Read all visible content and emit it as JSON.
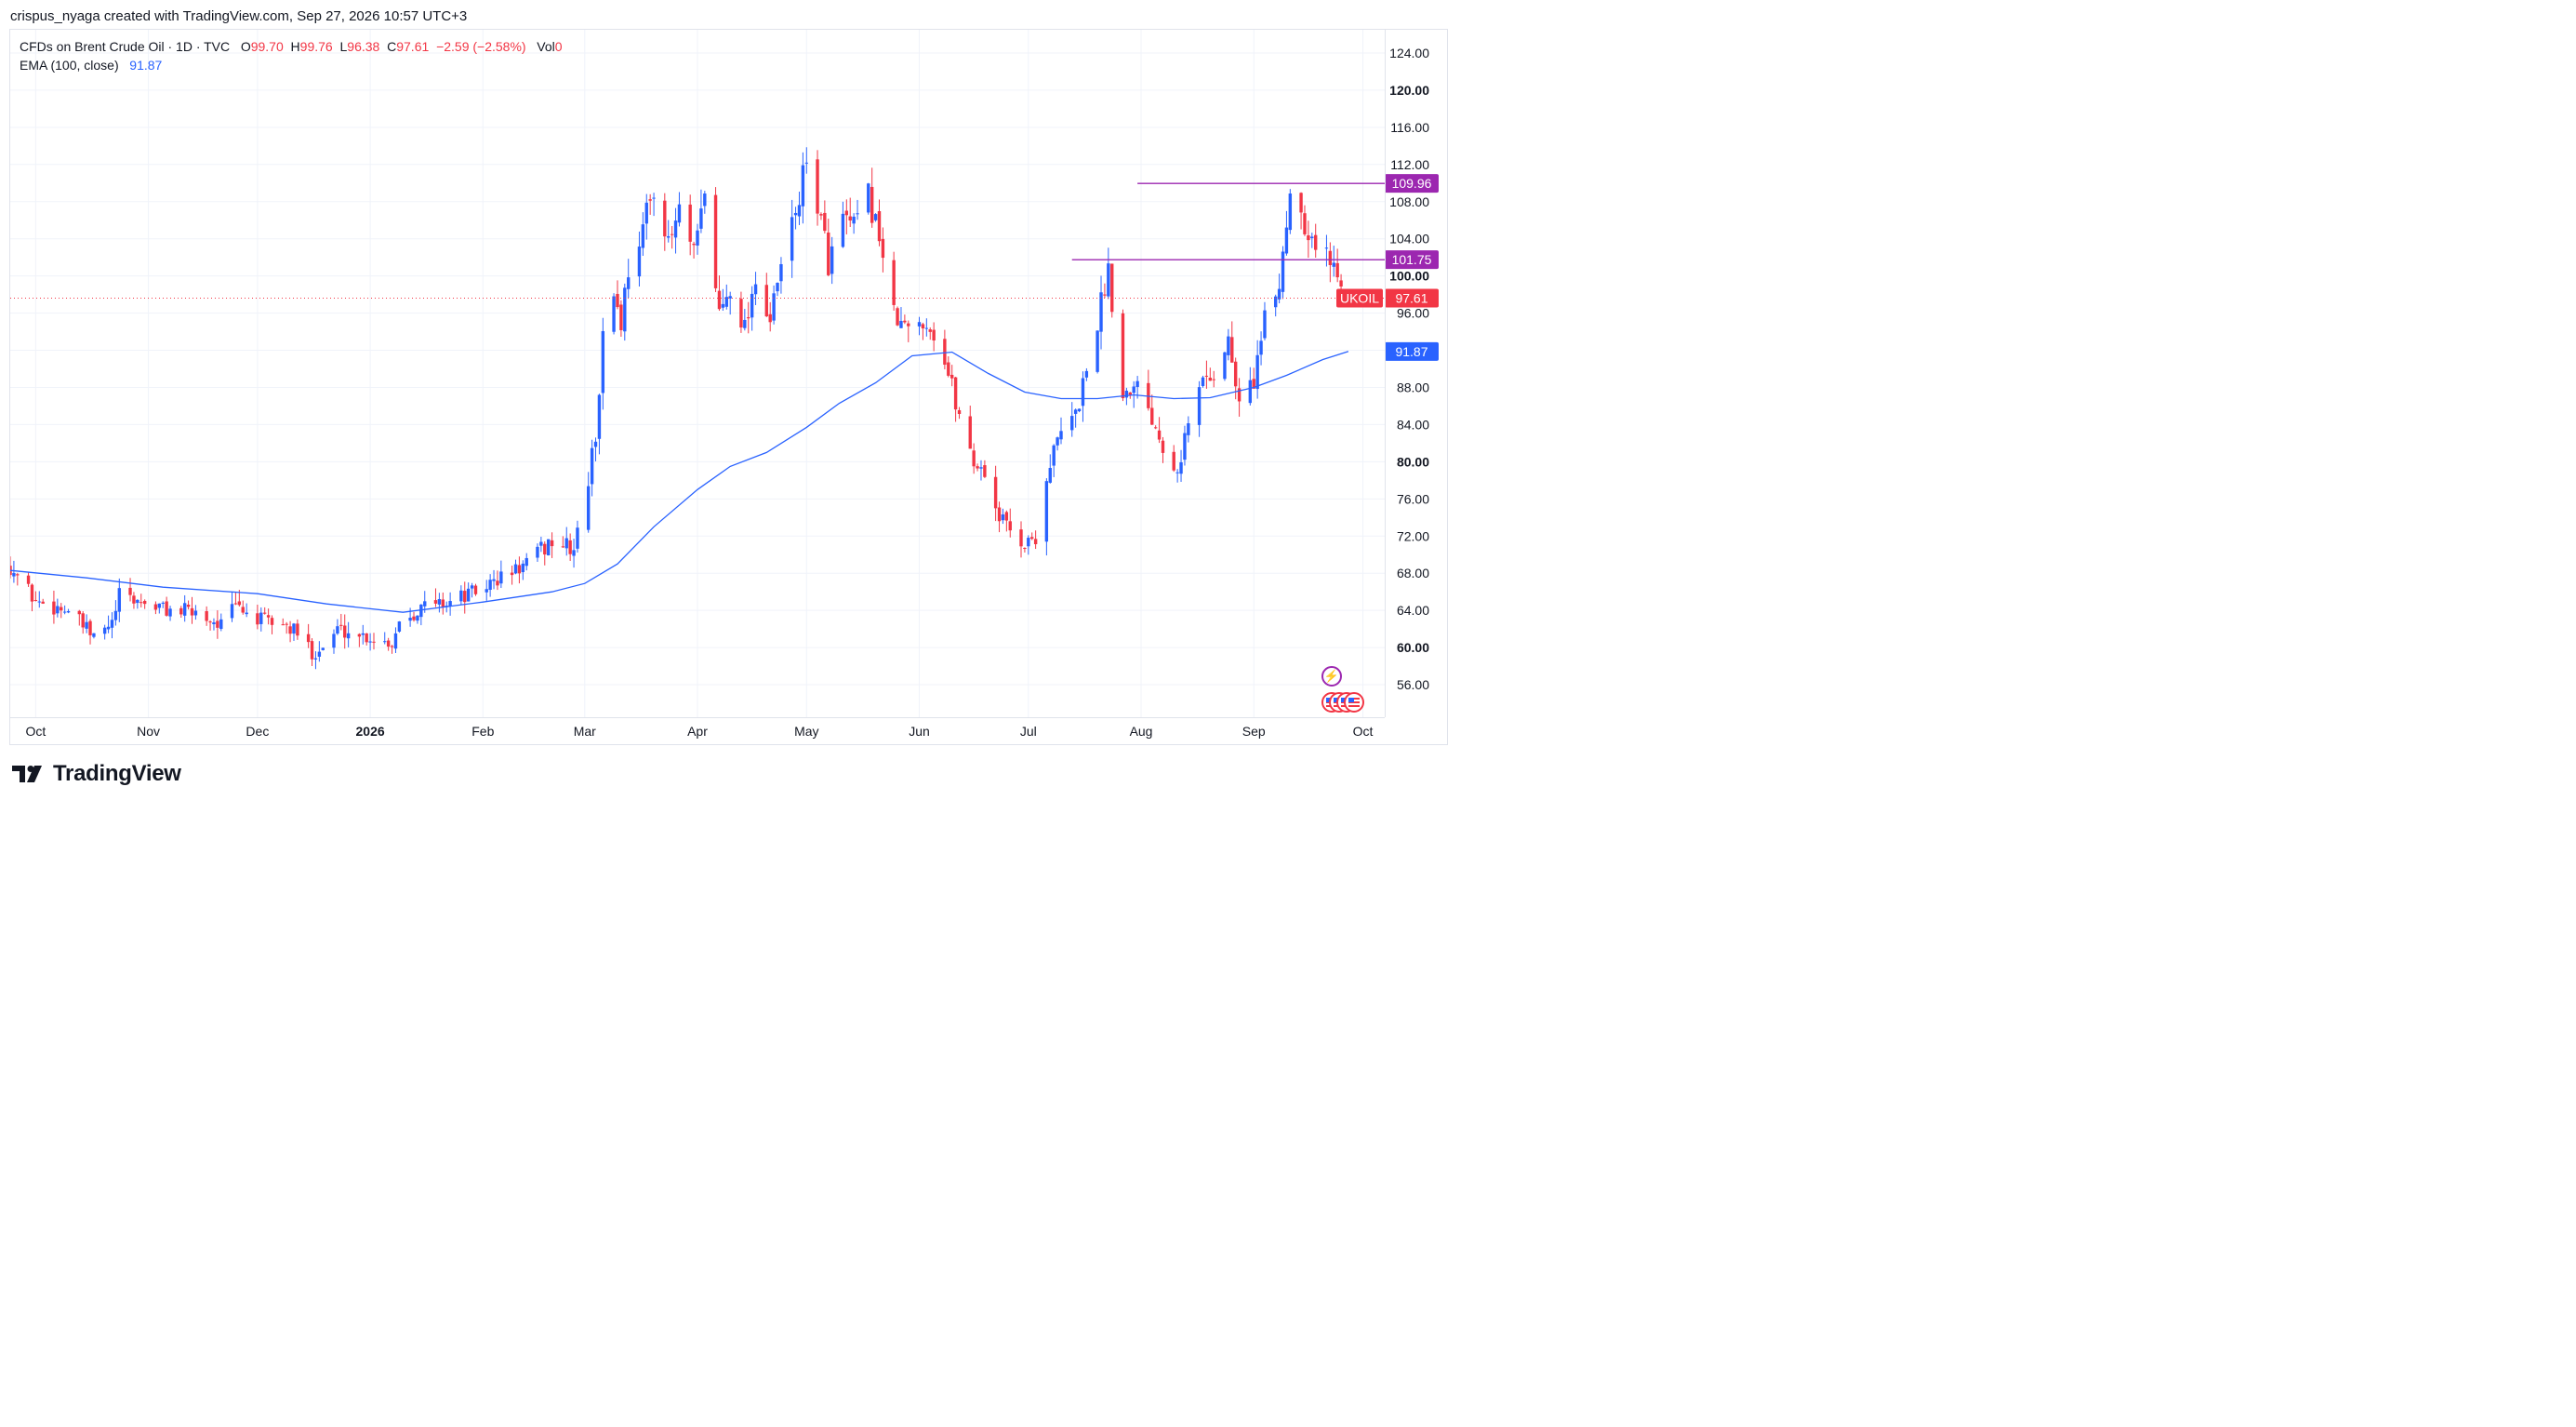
{
  "header": {
    "credit": "crispus_nyaga created with TradingView.com, Sep 27, 2026 10:57 UTC+3"
  },
  "legend": {
    "symbol": "CFDs on Brent Crude Oil · 1D · TVC",
    "o_label": "O",
    "o_value": "99.70",
    "h_label": "H",
    "h_value": "99.76",
    "l_label": "L",
    "l_value": "96.38",
    "c_label": "C",
    "c_value": "97.61",
    "change": "−2.59 (−2.58%)",
    "vol_label": "Vol",
    "vol_value": "0",
    "ema_label": "EMA (100, close)",
    "ema_value": "91.87"
  },
  "brand": {
    "name": "TradingView"
  },
  "colors": {
    "up": "#2962ff",
    "down": "#f23645",
    "ema": "#2962ff",
    "level": "#9c27b0",
    "grid": "#f0f3fa",
    "text": "#131722"
  },
  "icons": [
    "lightning-icon",
    "us-flag-icon",
    "tradingview-logo-icon"
  ],
  "chart_data": {
    "type": "candlestick",
    "symbol": "UKOIL",
    "ylim": [
      52.5,
      126.5
    ],
    "yticks": [
      "124.00",
      "120.00",
      "116.00",
      "112.00",
      "108.00",
      "104.00",
      "100.00",
      "96.00",
      "92.00",
      "88.00",
      "84.00",
      "80.00",
      "76.00",
      "72.00",
      "68.00",
      "64.00",
      "60.00",
      "56.00"
    ],
    "ytick_bold": [
      "120.00",
      "100.00",
      "80.00",
      "60.00"
    ],
    "xrange": [
      "2025-09-24",
      "2026-10-07"
    ],
    "xticks": [
      {
        "label": "Oct",
        "date": "2025-10-01",
        "bold": false
      },
      {
        "label": "Nov",
        "date": "2025-11-01",
        "bold": false
      },
      {
        "label": "Dec",
        "date": "2025-12-01",
        "bold": false
      },
      {
        "label": "2026",
        "date": "2026-01-01",
        "bold": true
      },
      {
        "label": "Feb",
        "date": "2026-02-01",
        "bold": false
      },
      {
        "label": "Mar",
        "date": "2026-03-01",
        "bold": false
      },
      {
        "label": "Apr",
        "date": "2026-04-01",
        "bold": false
      },
      {
        "label": "May",
        "date": "2026-05-01",
        "bold": false
      },
      {
        "label": "Jun",
        "date": "2026-06-01",
        "bold": false
      },
      {
        "label": "Jul",
        "date": "2026-07-01",
        "bold": false
      },
      {
        "label": "Aug",
        "date": "2026-08-01",
        "bold": false
      },
      {
        "label": "Sep",
        "date": "2026-09-01",
        "bold": false
      },
      {
        "label": "Oct",
        "date": "2026-10-01",
        "bold": false
      }
    ],
    "close_path": [
      [
        "2025-09-24",
        68.8
      ],
      [
        "2025-10-01",
        65.0
      ],
      [
        "2025-10-10",
        64.0
      ],
      [
        "2025-10-17",
        61.0
      ],
      [
        "2025-10-22",
        62.5
      ],
      [
        "2025-10-24",
        65.5
      ],
      [
        "2025-10-31",
        64.8
      ],
      [
        "2025-11-07",
        64.0
      ],
      [
        "2025-11-14",
        63.8
      ],
      [
        "2025-11-21",
        62.5
      ],
      [
        "2025-11-25",
        64.5
      ],
      [
        "2025-12-01",
        63.0
      ],
      [
        "2025-12-08",
        62.5
      ],
      [
        "2025-12-12",
        61.5
      ],
      [
        "2025-12-16",
        59.5
      ],
      [
        "2025-12-19",
        60.0
      ],
      [
        "2025-12-23",
        62.0
      ],
      [
        "2026-01-02",
        61.0
      ],
      [
        "2026-01-07",
        60.5
      ],
      [
        "2026-01-09",
        63.0
      ],
      [
        "2026-01-16",
        64.5
      ],
      [
        "2026-01-23",
        65.0
      ],
      [
        "2026-01-30",
        66.0
      ],
      [
        "2026-02-06",
        67.5
      ],
      [
        "2026-02-13",
        69.0
      ],
      [
        "2026-02-20",
        71.5
      ],
      [
        "2026-02-26",
        70.5
      ],
      [
        "2026-03-02",
        78.0
      ],
      [
        "2026-03-04",
        83.0
      ],
      [
        "2026-03-06",
        93.0
      ],
      [
        "2026-03-09",
        98.5
      ],
      [
        "2026-03-11",
        95.0
      ],
      [
        "2026-03-13",
        101.0
      ],
      [
        "2026-03-17",
        105.0
      ],
      [
        "2026-03-20",
        110.0
      ],
      [
        "2026-03-24",
        103.0
      ],
      [
        "2026-03-27",
        107.0
      ],
      [
        "2026-03-31",
        102.0
      ],
      [
        "2026-04-03",
        108.5
      ],
      [
        "2026-04-07",
        96.0
      ],
      [
        "2026-04-10",
        99.0
      ],
      [
        "2026-04-14",
        94.5
      ],
      [
        "2026-04-17",
        100.0
      ],
      [
        "2026-04-21",
        95.0
      ],
      [
        "2026-04-24",
        101.0
      ],
      [
        "2026-04-28",
        107.0
      ],
      [
        "2026-05-01",
        112.0
      ],
      [
        "2026-05-04",
        108.0
      ],
      [
        "2026-05-07",
        101.5
      ],
      [
        "2026-05-11",
        106.0
      ],
      [
        "2026-05-14",
        105.0
      ],
      [
        "2026-05-18",
        108.5
      ],
      [
        "2026-05-21",
        104.5
      ],
      [
        "2026-05-25",
        95.5
      ],
      [
        "2026-05-29",
        94.0
      ],
      [
        "2026-06-02",
        95.5
      ],
      [
        "2026-06-05",
        94.0
      ],
      [
        "2026-06-09",
        89.5
      ],
      [
        "2026-06-12",
        85.0
      ],
      [
        "2026-06-16",
        80.0
      ],
      [
        "2026-06-19",
        79.0
      ],
      [
        "2026-06-23",
        74.0
      ],
      [
        "2026-06-26",
        73.0
      ],
      [
        "2026-06-30",
        71.0
      ],
      [
        "2026-07-03",
        72.0
      ],
      [
        "2026-07-07",
        80.0
      ],
      [
        "2026-07-10",
        83.0
      ],
      [
        "2026-07-14",
        85.0
      ],
      [
        "2026-07-17",
        90.0
      ],
      [
        "2026-07-21",
        97.0
      ],
      [
        "2026-07-23",
        101.0
      ],
      [
        "2026-07-27",
        87.0
      ],
      [
        "2026-07-30",
        89.0
      ],
      [
        "2026-08-03",
        86.0
      ],
      [
        "2026-08-07",
        82.0
      ],
      [
        "2026-08-11",
        79.5
      ],
      [
        "2026-08-14",
        84.0
      ],
      [
        "2026-08-18",
        89.0
      ],
      [
        "2026-08-21",
        89.5
      ],
      [
        "2026-08-25",
        93.0
      ],
      [
        "2026-08-28",
        86.0
      ],
      [
        "2026-09-01",
        89.0
      ],
      [
        "2026-09-04",
        95.0
      ],
      [
        "2026-09-08",
        99.0
      ],
      [
        "2026-09-11",
        109.5
      ],
      [
        "2026-09-14",
        107.0
      ],
      [
        "2026-09-17",
        104.0
      ],
      [
        "2026-09-22",
        101.5
      ],
      [
        "2026-09-25",
        100.2
      ],
      [
        "2026-09-27",
        97.61
      ]
    ],
    "ema_path": [
      [
        "2025-09-24",
        68.3
      ],
      [
        "2025-10-15",
        67.5
      ],
      [
        "2025-11-05",
        66.5
      ],
      [
        "2025-12-01",
        65.8
      ],
      [
        "2025-12-20",
        64.7
      ],
      [
        "2026-01-10",
        63.8
      ],
      [
        "2026-02-01",
        64.9
      ],
      [
        "2026-02-20",
        66.0
      ],
      [
        "2026-03-01",
        66.9
      ],
      [
        "2026-03-10",
        69.0
      ],
      [
        "2026-03-20",
        73.0
      ],
      [
        "2026-04-01",
        77.0
      ],
      [
        "2026-04-10",
        79.5
      ],
      [
        "2026-04-20",
        81.0
      ],
      [
        "2026-05-01",
        83.7
      ],
      [
        "2026-05-10",
        86.3
      ],
      [
        "2026-05-20",
        88.5
      ],
      [
        "2026-05-30",
        91.4
      ],
      [
        "2026-06-10",
        91.8
      ],
      [
        "2026-06-20",
        89.5
      ],
      [
        "2026-06-30",
        87.5
      ],
      [
        "2026-07-10",
        86.8
      ],
      [
        "2026-07-20",
        86.8
      ],
      [
        "2026-07-30",
        87.2
      ],
      [
        "2026-08-10",
        86.8
      ],
      [
        "2026-08-20",
        86.9
      ],
      [
        "2026-09-01",
        88.0
      ],
      [
        "2026-09-10",
        89.3
      ],
      [
        "2026-09-20",
        91.0
      ],
      [
        "2026-09-27",
        91.87
      ]
    ],
    "annotations": {
      "level_1": {
        "value": "109.96",
        "from": "2026-07-31",
        "to": "2026-10-07"
      },
      "level_2": {
        "value": "101.75",
        "from": "2026-07-13",
        "to": "2026-10-07"
      },
      "last_price": {
        "symbol": "UKOIL",
        "value": "97.61"
      },
      "ema_last": {
        "value": "91.87"
      }
    }
  }
}
